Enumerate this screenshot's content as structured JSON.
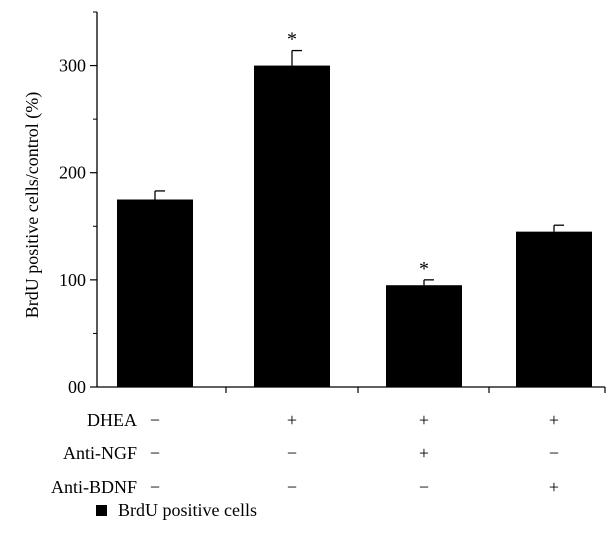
{
  "chart_data": {
    "type": "bar",
    "ylabel": "BrdU positive cells/control (%)",
    "ylim": [
      0,
      350
    ],
    "yticks": [
      0,
      100,
      200,
      300
    ],
    "ytick_labels": [
      "00",
      "100",
      "200",
      "300"
    ],
    "grid": false,
    "legend_position": "bottom-left",
    "series": [
      {
        "name": "BrdU positive cells",
        "color": "#000000",
        "values": [
          175,
          300,
          95,
          145
        ],
        "errors": [
          8,
          14,
          5,
          6
        ],
        "significance": [
          "",
          "*",
          "*",
          ""
        ]
      }
    ],
    "treatments": [
      {
        "label": "DHEA",
        "values": [
          "−",
          "+",
          "+",
          "+"
        ]
      },
      {
        "label": "Anti-NGF",
        "values": [
          "−",
          "−",
          "+",
          "−"
        ]
      },
      {
        "label": "Anti-BDNF",
        "values": [
          "−",
          "−",
          "−",
          "+"
        ]
      }
    ]
  }
}
